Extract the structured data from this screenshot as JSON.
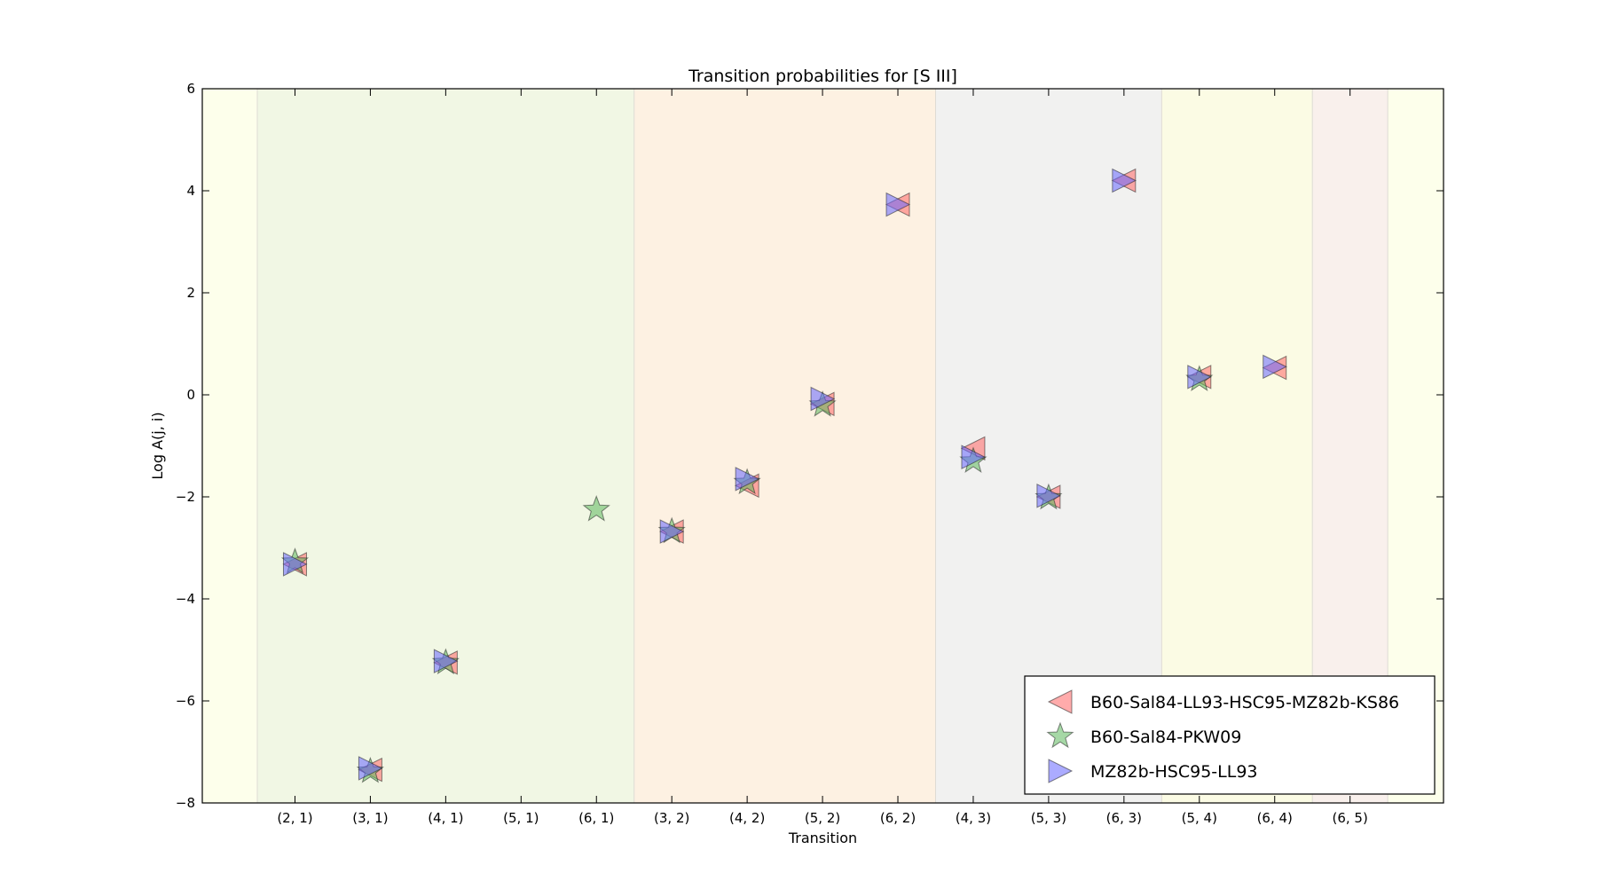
{
  "chart_data": {
    "type": "scatter",
    "title": "Transition probabilities for [S III]",
    "xlabel": "Transition",
    "ylabel": "Log A(j, i)",
    "ylim": [
      -8,
      6
    ],
    "yticks": [
      "6",
      "4",
      "2",
      "0",
      "−2",
      "−4",
      "−6",
      "−8"
    ],
    "categories": [
      "(2, 1)",
      "(3, 1)",
      "(4, 1)",
      "(5, 1)",
      "(6, 1)",
      "(3, 2)",
      "(4, 2)",
      "(5, 2)",
      "(6, 2)",
      "(4, 3)",
      "(5, 3)",
      "(6, 3)",
      "(5, 4)",
      "(6, 4)",
      "(6, 5)"
    ],
    "bands": [
      {
        "from": -1.23,
        "to": -0.5,
        "color": "#fdffeb"
      },
      {
        "from": -0.5,
        "to": 4.5,
        "color": "#f1f7e4"
      },
      {
        "from": 4.5,
        "to": 8.5,
        "color": "#fdf1e2"
      },
      {
        "from": 8.5,
        "to": 11.5,
        "color": "#f1f1f0"
      },
      {
        "from": 11.5,
        "to": 13.5,
        "color": "#fbfbe4"
      },
      {
        "from": 13.5,
        "to": 14.5,
        "color": "#f9f0ec"
      },
      {
        "from": 14.5,
        "to": 15.24,
        "color": "#fdffeb"
      }
    ],
    "series": [
      {
        "name": "B60-Sal84-LL93-HSC95-MZ82b-KS86",
        "marker": "triangle-left",
        "color": "#ff6666",
        "values": [
          -3.32,
          -7.35,
          -5.25,
          null,
          null,
          -2.68,
          -1.78,
          -0.18,
          3.73,
          -1.05,
          -2.0,
          4.2,
          0.35,
          0.53,
          null
        ]
      },
      {
        "name": "B60-Sal84-PKW09",
        "marker": "star",
        "color": "#5cb85c",
        "values": [
          -3.28,
          -7.38,
          -5.25,
          null,
          -2.25,
          -2.68,
          -1.72,
          -0.2,
          null,
          -1.3,
          -2.02,
          null,
          0.3,
          null,
          null
        ]
      },
      {
        "name": "MZ82b-HSC95-LL93",
        "marker": "triangle-right",
        "color": "#6666ff",
        "values": [
          -3.32,
          -7.32,
          -5.22,
          null,
          null,
          -2.68,
          -1.65,
          -0.08,
          3.73,
          -1.22,
          -1.98,
          4.2,
          0.35,
          0.55,
          null
        ]
      }
    ],
    "legend_position": "lower right"
  }
}
